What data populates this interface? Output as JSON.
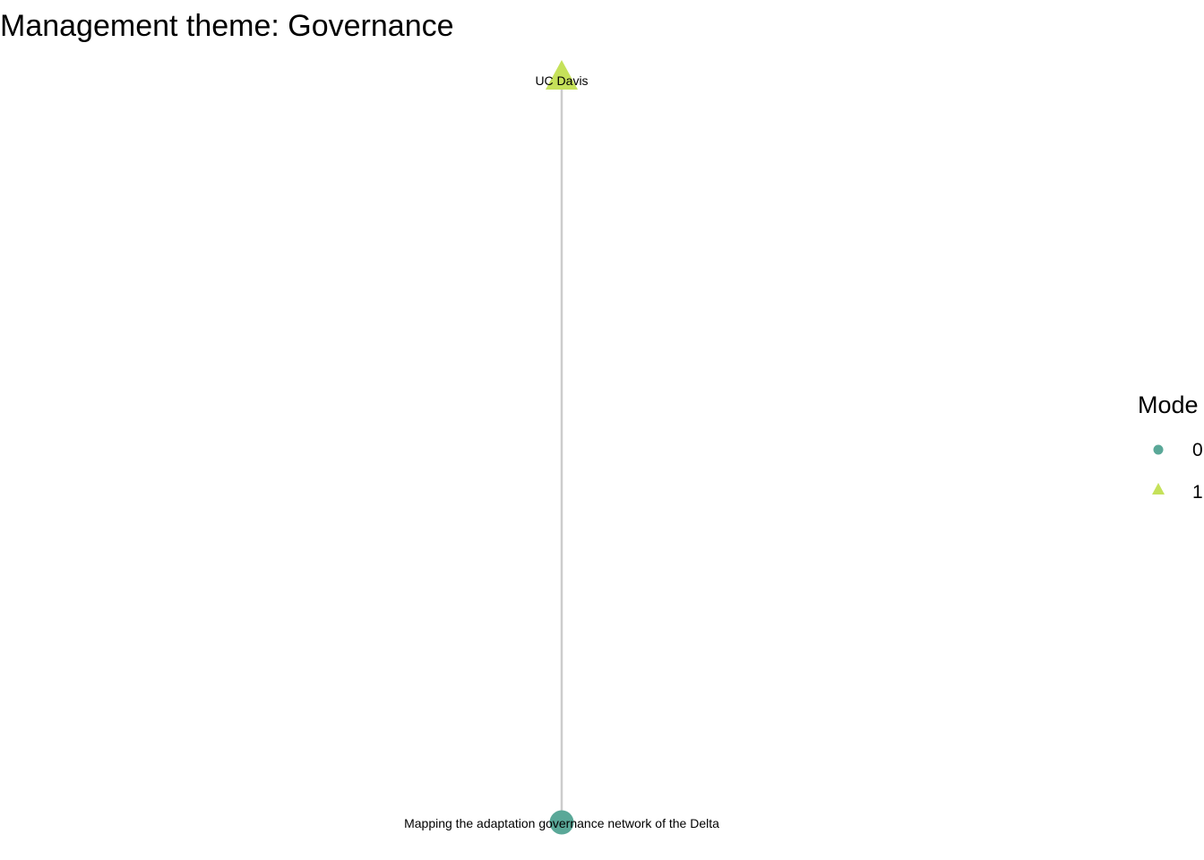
{
  "title": "Management theme: Governance",
  "colors": {
    "mode_0": "#5aa898",
    "mode_1": "#c5e15a",
    "edge": "#cccccc"
  },
  "nodes": [
    {
      "id": "ucdavis",
      "label": "UC Davis",
      "mode": "1",
      "shape": "triangle-icon"
    },
    {
      "id": "project",
      "label": "Mapping the adaptation governance network of the Delta",
      "mode": "0",
      "shape": "circle-icon"
    }
  ],
  "edges": [
    {
      "from": "project",
      "to": "ucdavis"
    }
  ],
  "legend": {
    "title": "Mode",
    "items": [
      {
        "label": "0",
        "shape": "circle-icon"
      },
      {
        "label": "1",
        "shape": "triangle-icon"
      }
    ]
  }
}
